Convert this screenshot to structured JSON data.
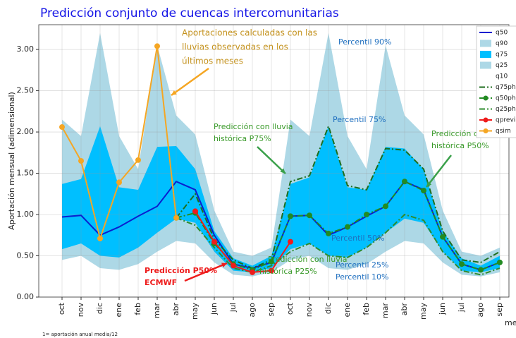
{
  "chart_data": {
    "type": "line",
    "title": "Predicción conjunto de cuencas intercomunitarias",
    "ylabel": "Aportación mensual (adimensional)",
    "xlabel": "me",
    "footnote": "1= aportación anual media/12",
    "categories": [
      "oct",
      "nov",
      "dic",
      "ene",
      "feb",
      "mar",
      "abr",
      "may",
      "jun",
      "jul",
      "ago",
      "sep",
      "oct",
      "nov",
      "dic",
      "ene",
      "feb",
      "mar",
      "abr",
      "may",
      "jun",
      "jul",
      "ago",
      "sep"
    ],
    "ylim": [
      0,
      3.3
    ],
    "yticks": [
      {
        "value": 0,
        "label": "0.00"
      },
      {
        "value": 0.5,
        "label": "0.50"
      },
      {
        "value": 1,
        "label": "1.00"
      },
      {
        "value": 1.5,
        "label": "1.50"
      },
      {
        "value": 2,
        "label": "2.00"
      },
      {
        "value": 2.5,
        "label": "2.50"
      },
      {
        "value": 3,
        "label": "3.00"
      }
    ],
    "grid": true,
    "legend": "upper right",
    "series": [
      {
        "name": "q50",
        "color": "#0a1fd0",
        "style": "line",
        "values": [
          0.97,
          0.99,
          0.75,
          0.85,
          0.98,
          1.1,
          1.4,
          1.3,
          0.75,
          0.4,
          0.35,
          0.42,
          0.98,
          0.99,
          0.75,
          0.85,
          0.98,
          1.1,
          1.4,
          1.3,
          0.73,
          0.4,
          0.33,
          0.42
        ]
      },
      {
        "name": "q90",
        "color": "#add8e6",
        "style": "area",
        "fill_to": "q10",
        "values": [
          2.15,
          1.95,
          3.2,
          1.95,
          1.55,
          3.05,
          2.2,
          1.97,
          1.05,
          0.55,
          0.5,
          0.6,
          2.15,
          1.95,
          3.2,
          1.95,
          1.55,
          3.05,
          2.2,
          1.97,
          1.05,
          0.55,
          0.5,
          0.6
        ]
      },
      {
        "name": "q75",
        "color": "#00bfff",
        "style": "area",
        "fill_to": "q25",
        "values": [
          1.37,
          1.43,
          2.07,
          1.33,
          1.3,
          1.82,
          1.83,
          1.55,
          0.8,
          0.47,
          0.38,
          0.5,
          1.37,
          1.45,
          2.07,
          1.33,
          1.3,
          1.82,
          1.8,
          1.55,
          0.8,
          0.47,
          0.38,
          0.5
        ]
      },
      {
        "name": "q25",
        "color": "#add8e6",
        "style": "area",
        "values": [
          0.58,
          0.65,
          0.5,
          0.48,
          0.6,
          0.78,
          0.95,
          0.9,
          0.55,
          0.32,
          0.3,
          0.35,
          0.58,
          0.65,
          0.5,
          0.48,
          0.6,
          0.78,
          0.95,
          0.9,
          0.55,
          0.32,
          0.3,
          0.35
        ]
      },
      {
        "name": "q10",
        "color": "#ffffff",
        "style": "area",
        "values": [
          0.45,
          0.5,
          0.35,
          0.33,
          0.4,
          0.55,
          0.68,
          0.65,
          0.42,
          0.27,
          0.25,
          0.3,
          0.45,
          0.5,
          0.35,
          0.33,
          0.4,
          0.55,
          0.68,
          0.65,
          0.42,
          0.27,
          0.25,
          0.3
        ]
      },
      {
        "name": "q75ph",
        "color": "#1e6e1e",
        "style": "dashdot",
        "values": [
          null,
          null,
          null,
          null,
          null,
          null,
          0.96,
          1.25,
          0.7,
          0.45,
          0.35,
          0.45,
          1.4,
          1.47,
          2.07,
          1.35,
          1.3,
          1.8,
          1.78,
          1.55,
          0.8,
          0.45,
          0.42,
          0.55
        ]
      },
      {
        "name": "q50ph",
        "color": "#228b22",
        "style": "dashdot",
        "marker": true,
        "values": [
          null,
          null,
          null,
          null,
          null,
          null,
          0.96,
          1.02,
          0.65,
          0.4,
          0.33,
          0.43,
          0.98,
          0.99,
          0.77,
          0.85,
          1.0,
          1.1,
          1.4,
          1.29,
          0.73,
          0.4,
          0.33,
          0.42
        ]
      },
      {
        "name": "q25ph",
        "color": "#2e8b2e",
        "style": "dashdot",
        "values": [
          null,
          null,
          null,
          null,
          null,
          null,
          0.96,
          0.87,
          0.6,
          0.35,
          0.3,
          0.38,
          0.55,
          0.65,
          0.5,
          0.48,
          0.6,
          0.78,
          1.0,
          0.93,
          0.55,
          0.32,
          0.27,
          0.35
        ]
      },
      {
        "name": "qprevi",
        "color": "#ee1c1c",
        "style": "line",
        "marker": true,
        "values": [
          null,
          null,
          null,
          null,
          null,
          null,
          null,
          1.04,
          0.67,
          0.38,
          0.3,
          0.32,
          0.67,
          null,
          null,
          null,
          null,
          null,
          null,
          null,
          null,
          null,
          null,
          null
        ]
      },
      {
        "name": "qsim",
        "color": "#f5a623",
        "style": "line",
        "marker": true,
        "values": [
          2.06,
          1.65,
          0.71,
          1.39,
          1.66,
          3.04,
          0.96,
          null,
          null,
          null,
          null,
          null,
          null,
          null,
          null,
          null,
          null,
          null,
          null,
          null,
          null,
          null,
          null,
          null
        ]
      }
    ],
    "annotations": [
      {
        "lines": [
          "Aportaciones calculadas con las",
          "lluvias observadas en los",
          "últimos meses"
        ],
        "color": "#c4921e"
      },
      {
        "lines": [
          "Percentil 90%"
        ],
        "color": "#1f6fbf"
      },
      {
        "lines": [
          "Percentil 75%"
        ],
        "color": "#1f6fbf"
      },
      {
        "lines": [
          "Predicción con lluvia",
          "histórica P75%"
        ],
        "color": "#3a9a2a"
      },
      {
        "lines": [
          "Predicción con lluvia",
          "histórica P50%"
        ],
        "color": "#3a9a2a"
      },
      {
        "lines": [
          "Percentil 50%"
        ],
        "color": "#1f6fbf"
      },
      {
        "lines": [
          "Predicción con lluvia",
          "histórica P25%"
        ],
        "color": "#3a9a2a"
      },
      {
        "lines": [
          "Percentil 25%"
        ],
        "color": "#1f6fbf"
      },
      {
        "lines": [
          "Percentil 10%"
        ],
        "color": "#1f6fbf"
      },
      {
        "lines": [
          "Predicción P50%",
          "ECMWF"
        ],
        "color": "#ee1c1c"
      }
    ]
  }
}
